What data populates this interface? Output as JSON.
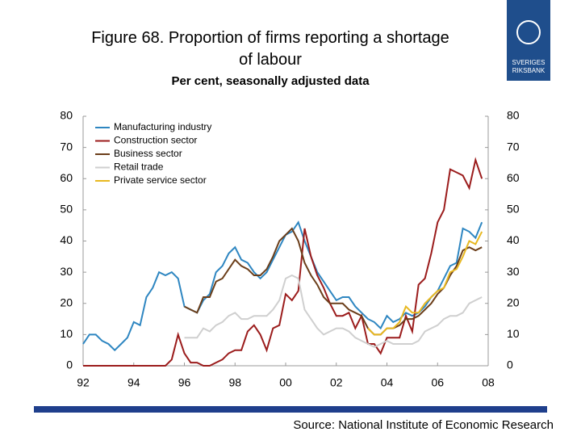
{
  "header": {
    "logo_text": [
      "SVERIGES",
      "RIKSBANK"
    ],
    "source": "Source: National Institute of Economic Research"
  },
  "chart_data": {
    "type": "line",
    "title": "Figure 68. Proportion of firms reporting a shortage of labour",
    "subtitle": "Per cent, seasonally adjusted data",
    "x": [
      1992,
      1992.25,
      1992.5,
      1992.75,
      1993,
      1993.25,
      1993.5,
      1993.75,
      1994,
      1994.25,
      1994.5,
      1994.75,
      1995,
      1995.25,
      1995.5,
      1995.75,
      1996,
      1996.25,
      1996.5,
      1996.75,
      1997,
      1997.25,
      1997.5,
      1997.75,
      1998,
      1998.25,
      1998.5,
      1998.75,
      1999,
      1999.25,
      1999.5,
      1999.75,
      2000,
      2000.25,
      2000.5,
      2000.75,
      2001,
      2001.25,
      2001.5,
      2001.75,
      2002,
      2002.25,
      2002.5,
      2002.75,
      2003,
      2003.25,
      2003.5,
      2003.75,
      2004,
      2004.25,
      2004.5,
      2004.75,
      2005,
      2005.25,
      2005.5,
      2005.75,
      2006,
      2006.25,
      2006.5,
      2006.75,
      2007,
      2007.25,
      2007.5,
      2007.75
    ],
    "series": [
      {
        "name": "Manufacturing industry",
        "color": "#2e86c1",
        "values": [
          7,
          10,
          10,
          8,
          7,
          5,
          7,
          9,
          14,
          13,
          22,
          25,
          30,
          29,
          30,
          28,
          19,
          18,
          17,
          21,
          23,
          30,
          32,
          36,
          38,
          34,
          33,
          30,
          28,
          30,
          34,
          38,
          42,
          43,
          46,
          40,
          35,
          30,
          27,
          24,
          21,
          22,
          22,
          19,
          17,
          15,
          14,
          12,
          16,
          14,
          15,
          17,
          16,
          17,
          19,
          22,
          24,
          28,
          32,
          33,
          44,
          43,
          41,
          46
        ]
      },
      {
        "name": "Construction sector",
        "color": "#9b1c1c",
        "values": [
          0,
          0,
          0,
          0,
          0,
          0,
          0,
          0,
          0,
          0,
          0,
          0,
          0,
          0,
          2,
          10,
          4,
          1,
          1,
          0,
          0,
          1,
          2,
          4,
          5,
          5,
          11,
          13,
          10,
          5,
          12,
          13,
          23,
          21,
          24,
          44,
          35,
          29,
          25,
          20,
          16,
          16,
          17,
          12,
          16,
          7,
          7,
          4,
          9,
          9,
          9,
          16,
          11,
          26,
          28,
          36,
          46,
          50,
          63,
          62,
          61,
          57,
          66,
          60
        ]
      },
      {
        "name": "Business sector",
        "color": "#6b3e1a",
        "values": [
          null,
          null,
          null,
          null,
          null,
          null,
          null,
          null,
          null,
          null,
          null,
          null,
          null,
          null,
          null,
          null,
          19,
          18,
          17,
          22,
          22,
          27,
          28,
          31,
          34,
          32,
          31,
          29,
          29,
          31,
          35,
          40,
          42,
          44,
          40,
          33,
          29,
          26,
          22,
          20,
          20,
          20,
          18,
          17,
          16,
          12,
          10,
          10,
          12,
          12,
          13,
          15,
          15,
          16,
          18,
          20,
          23,
          25,
          29,
          32,
          37,
          38,
          37,
          38
        ]
      },
      {
        "name": "Retail trade",
        "color": "#cfcfcf",
        "values": [
          null,
          null,
          null,
          null,
          null,
          null,
          null,
          null,
          null,
          null,
          null,
          null,
          null,
          null,
          null,
          null,
          9,
          9,
          9,
          12,
          11,
          13,
          14,
          16,
          17,
          15,
          15,
          16,
          16,
          16,
          18,
          21,
          28,
          29,
          28,
          18,
          15,
          12,
          10,
          11,
          12,
          12,
          11,
          9,
          8,
          7,
          6,
          7,
          8,
          7,
          7,
          7,
          7,
          8,
          11,
          12,
          13,
          15,
          16,
          16,
          17,
          20,
          21,
          22
        ]
      },
      {
        "name": "Private service sector",
        "color": "#e8b820",
        "values": [
          null,
          null,
          null,
          null,
          null,
          null,
          null,
          null,
          null,
          null,
          null,
          null,
          null,
          null,
          null,
          null,
          null,
          null,
          null,
          null,
          null,
          null,
          null,
          null,
          null,
          null,
          null,
          null,
          null,
          null,
          null,
          null,
          null,
          null,
          null,
          null,
          null,
          null,
          null,
          null,
          null,
          null,
          null,
          null,
          null,
          12,
          10,
          10,
          12,
          12,
          14,
          19,
          17,
          17,
          20,
          22,
          24,
          25,
          30,
          31,
          35,
          40,
          39,
          43
        ]
      }
    ],
    "xlim": [
      1992,
      2008
    ],
    "xticks": [
      {
        "value": 1992,
        "label": "92"
      },
      {
        "value": 1994,
        "label": "94"
      },
      {
        "value": 1996,
        "label": "96"
      },
      {
        "value": 1998,
        "label": "98"
      },
      {
        "value": 2000,
        "label": "00"
      },
      {
        "value": 2002,
        "label": "02"
      },
      {
        "value": 2004,
        "label": "04"
      },
      {
        "value": 2006,
        "label": "06"
      },
      {
        "value": 2008,
        "label": "08"
      }
    ],
    "ylim": [
      0,
      80
    ],
    "yticks": [
      0,
      10,
      20,
      30,
      40,
      50,
      60,
      70,
      80
    ],
    "y2lim": [
      0,
      80
    ],
    "y2ticks": [
      0,
      10,
      20,
      30,
      40,
      50,
      60,
      70,
      80
    ],
    "legend": "upper left",
    "grid": false
  }
}
